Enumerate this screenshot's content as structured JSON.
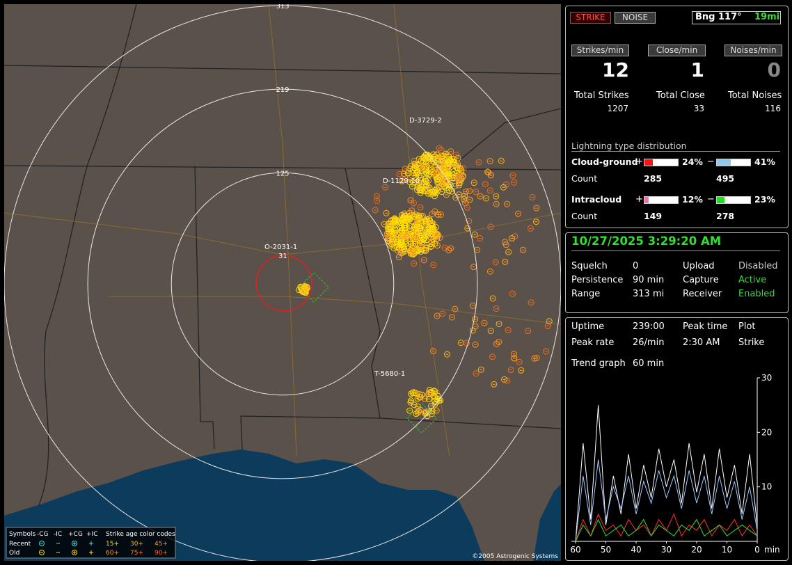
{
  "map": {
    "rings": [
      125,
      219,
      313
    ],
    "labels": [
      "D-3729-2",
      "D-1129-10",
      "O-2031-1",
      "31",
      "T-5680-1"
    ],
    "copyright": "©2005 Astrogenic Systems",
    "legend": {
      "symbols_title": "Symbols",
      "columns": [
        "-CG",
        "-IC",
        "+CG",
        "+IC"
      ],
      "age_title": "Strike age color codes",
      "rows": [
        {
          "name": "Recent",
          "ages": [
            "15+",
            "30+",
            "45+"
          ]
        },
        {
          "name": "Old",
          "ages": [
            "60+",
            "75+",
            "90+"
          ]
        }
      ]
    }
  },
  "status": {
    "modes": [
      "STRIKE",
      "NOISE"
    ],
    "bearing": "Bng 117°",
    "distance": "19mi"
  },
  "rates": [
    {
      "label": "Strikes/min",
      "value": 12,
      "total_label": "Total Strikes",
      "total": 1207
    },
    {
      "label": "Close/min",
      "value": 1,
      "total_label": "Total Close",
      "total": 33
    },
    {
      "label": "Noises/min",
      "value": 0,
      "total_label": "Total Noises",
      "total": 116
    }
  ],
  "distribution": {
    "title": "Lightning type distribution",
    "rows": [
      {
        "name": "Cloud-ground",
        "pos_sign": "+",
        "pos_pct": 24,
        "pos_pct_label": "24%",
        "pos_color": "#ff1010",
        "neg_sign": "−",
        "neg_pct": 41,
        "neg_pct_label": "41%",
        "neg_color": "#90c8f0",
        "count_label": "Count",
        "pos_count": 285,
        "neg_count": 495
      },
      {
        "name": "Intracloud",
        "pos_sign": "+",
        "pos_pct": 12,
        "pos_pct_label": "12%",
        "pos_color": "#f070b0",
        "neg_sign": "−",
        "neg_pct": 23,
        "neg_pct_label": "23%",
        "neg_color": "#20e020",
        "count_label": "Count",
        "pos_count": 149,
        "neg_count": 278
      }
    ]
  },
  "clock": {
    "datetime": "10/27/2025 3:29:20 AM",
    "settings": [
      [
        {
          "label": "Squelch",
          "value": 0
        },
        {
          "label": "Upload",
          "value": "Disabled",
          "color": "#cccccc"
        }
      ],
      [
        {
          "label": "Persistence",
          "value": "90 min"
        },
        {
          "label": "Capture",
          "value": "Active",
          "color": "#30e030"
        }
      ],
      [
        {
          "label": "Range",
          "value": "313 mi"
        },
        {
          "label": "Receiver",
          "value": "Enabled",
          "color": "#30e030"
        }
      ]
    ]
  },
  "stats": {
    "uptime": {
      "label": "Uptime",
      "value": "239:00"
    },
    "peak_rate": {
      "label": "Peak rate",
      "value": "26/min"
    },
    "peak_time": {
      "label": "Peak time",
      "value": "2:30 AM"
    },
    "plot": {
      "label": "Plot",
      "value": "Strike"
    },
    "trend": {
      "label": "Trend graph",
      "window": "60 min"
    }
  },
  "trend": {
    "xlim": [
      60,
      0
    ],
    "ylim": [
      0,
      30
    ],
    "xticks": [
      60,
      50,
      40,
      30,
      20,
      10,
      0
    ],
    "yticks": [
      10,
      20,
      30
    ],
    "x_unit": "min",
    "x": [
      60,
      57.5,
      55,
      52.5,
      50,
      47.5,
      45,
      42.5,
      40,
      37.5,
      35,
      32.5,
      30,
      27.5,
      25,
      22.5,
      20,
      17.5,
      15,
      12.5,
      10,
      7.5,
      5,
      2.5,
      0
    ],
    "series": [
      {
        "name": "strikes",
        "color": "#ffffff",
        "values": [
          0,
          18,
          4,
          25,
          3,
          12,
          5,
          16,
          6,
          14,
          8,
          17,
          10,
          15,
          7,
          18,
          9,
          16,
          6,
          17,
          8,
          14,
          5,
          16,
          3
        ]
      },
      {
        "name": "cloud-ground",
        "color": "#a0c8ff",
        "values": [
          0,
          12,
          3,
          15,
          4,
          10,
          6,
          12,
          5,
          11,
          7,
          13,
          8,
          12,
          6,
          13,
          7,
          12,
          5,
          12,
          6,
          11,
          4,
          10,
          2
        ]
      },
      {
        "name": "close",
        "color": "#ff3030",
        "values": [
          0,
          4,
          1,
          5,
          2,
          3,
          1,
          4,
          2,
          3,
          1,
          4,
          2,
          5,
          1,
          3,
          2,
          4,
          1,
          3,
          2,
          4,
          1,
          3,
          1
        ]
      },
      {
        "name": "intracloud",
        "color": "#30e030",
        "values": [
          0,
          3,
          1,
          4,
          1,
          2,
          3,
          1,
          2,
          4,
          1,
          3,
          2,
          1,
          3,
          2,
          4,
          1,
          2,
          3,
          1,
          2,
          3,
          2,
          1
        ]
      }
    ]
  }
}
